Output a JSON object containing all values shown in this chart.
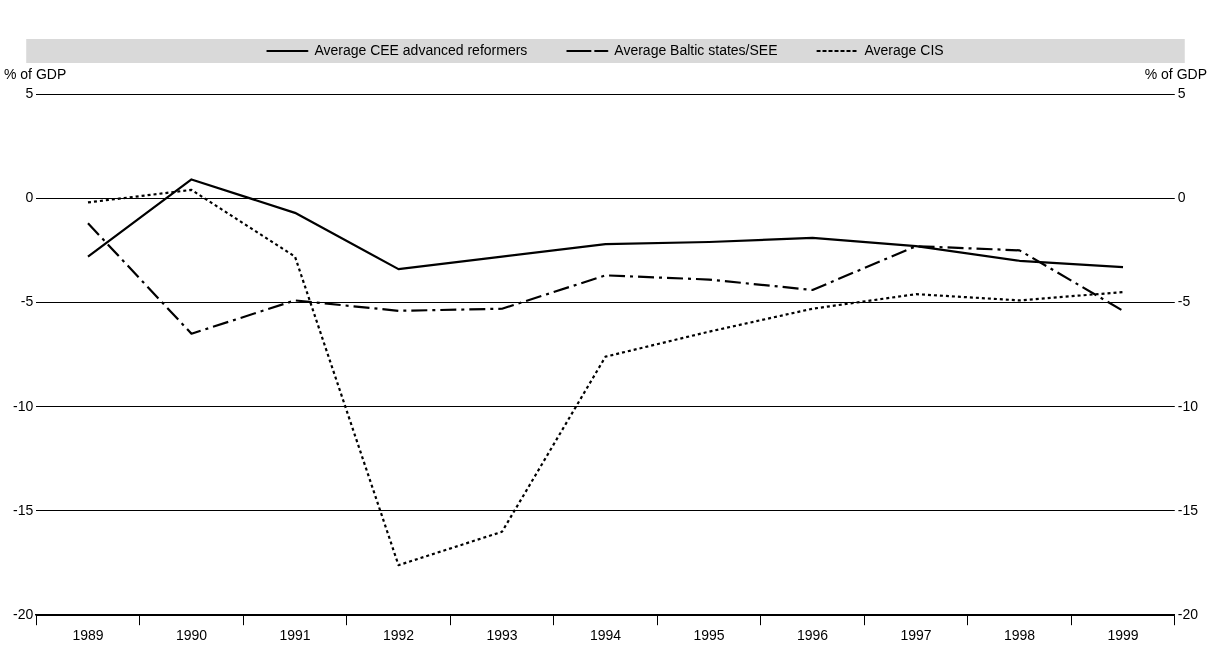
{
  "chart_data": {
    "type": "line",
    "ylabel": "% of GDP",
    "y2label": "% of GDP",
    "categories": [
      "1989",
      "1990",
      "1991",
      "1992",
      "1993",
      "1994",
      "1995",
      "1996",
      "1997",
      "1998",
      "1999"
    ],
    "series": [
      {
        "name": "Average CEE advanced reformers",
        "color": "#000000",
        "line_style": "solid",
        "values": [
          -2.8,
          0.9,
          -0.7,
          -3.4,
          -2.8,
          -2.2,
          -2.1,
          -1.9,
          -2.3,
          -3.0,
          -3.3
        ]
      },
      {
        "name": "Average Baltic states/SEE",
        "color": "#000000",
        "line_style": "dashdot",
        "values": [
          -1.2,
          -6.5,
          -4.9,
          -5.4,
          -5.3,
          -3.7,
          -3.9,
          -4.4,
          -2.3,
          -2.5,
          -5.4
        ]
      },
      {
        "name": "Average CIS",
        "color": "#000000",
        "line_style": "dotted",
        "values": [
          -0.2,
          0.4,
          -2.8,
          -17.6,
          -16.0,
          -7.6,
          -6.4,
          -5.3,
          -4.6,
          -4.9,
          -4.5
        ]
      }
    ],
    "ylim": [
      -20,
      5
    ],
    "yticks": [
      -20,
      -15,
      -10,
      -5,
      0,
      5
    ],
    "y2lim": [
      -20,
      5
    ],
    "y2ticks": [
      -20,
      -15,
      -10,
      -5,
      0,
      5
    ],
    "grid": "y",
    "legend": "top",
    "marker": "none"
  }
}
